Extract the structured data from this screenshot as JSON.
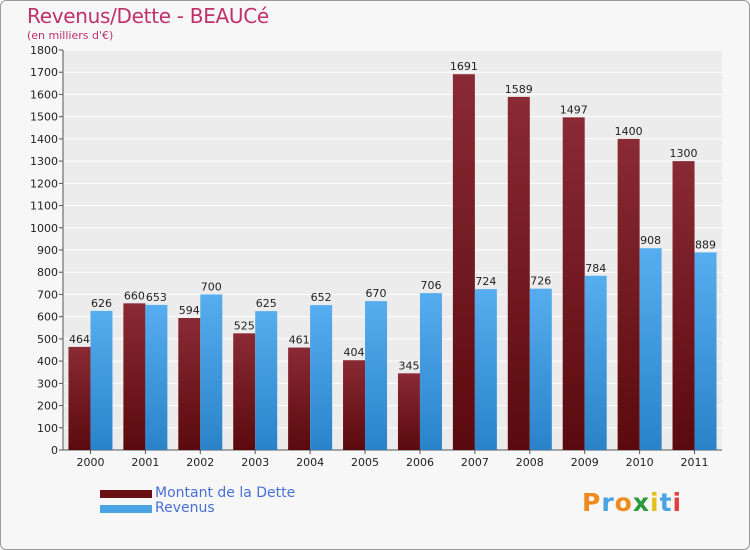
{
  "title": "Revenus/Dette - BEAUCé",
  "subtitle": "(en milliers d'€)",
  "chart_data": {
    "type": "bar",
    "categories": [
      "2000",
      "2001",
      "2002",
      "2003",
      "2004",
      "2005",
      "2006",
      "2007",
      "2008",
      "2009",
      "2010",
      "2011"
    ],
    "series": [
      {
        "name": "Montant de la Dette",
        "color": "#7a1c26",
        "values": [
          464,
          660,
          594,
          525,
          461,
          404,
          345,
          1691,
          1589,
          1497,
          1400,
          1300
        ]
      },
      {
        "name": "Revenus",
        "color": "#4aa3e2",
        "values": [
          626,
          653,
          700,
          625,
          652,
          670,
          706,
          724,
          726,
          784,
          908,
          889
        ]
      }
    ],
    "ylim": [
      0,
      1800
    ],
    "ytick_step": 100,
    "grid": true,
    "legend_position": "bottom-left"
  },
  "legend": [
    {
      "label": "Montant de la Dette",
      "color": "#6a0f14"
    },
    {
      "label": "Revenus",
      "color": "#4aa3e2"
    }
  ],
  "logo": {
    "text": "Proxiti"
  }
}
